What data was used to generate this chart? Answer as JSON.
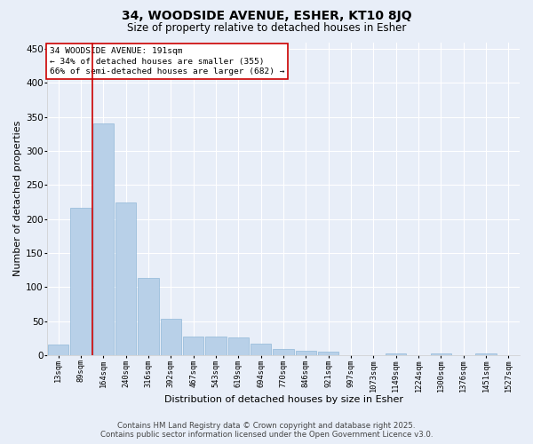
{
  "title1": "34, WOODSIDE AVENUE, ESHER, KT10 8JQ",
  "title2": "Size of property relative to detached houses in Esher",
  "xlabel": "Distribution of detached houses by size in Esher",
  "ylabel": "Number of detached properties",
  "categories": [
    "13sqm",
    "89sqm",
    "164sqm",
    "240sqm",
    "316sqm",
    "392sqm",
    "467sqm",
    "543sqm",
    "619sqm",
    "694sqm",
    "770sqm",
    "846sqm",
    "921sqm",
    "997sqm",
    "1073sqm",
    "1149sqm",
    "1224sqm",
    "1300sqm",
    "1376sqm",
    "1451sqm",
    "1527sqm"
  ],
  "values": [
    15,
    216,
    340,
    224,
    113,
    53,
    27,
    27,
    26,
    17,
    9,
    6,
    5,
    0,
    0,
    3,
    0,
    2,
    0,
    2,
    0
  ],
  "bar_color": "#b8d0e8",
  "bar_edge_color": "#90b8d8",
  "vline_x": 1.5,
  "vline_color": "#cc0000",
  "annotation_title": "34 WOODSIDE AVENUE: 191sqm",
  "annotation_line1": "← 34% of detached houses are smaller (355)",
  "annotation_line2": "66% of semi-detached houses are larger (682) →",
  "annotation_box_color": "#ffffff",
  "annotation_box_edge": "#cc0000",
  "ylim": [
    0,
    460
  ],
  "yticks": [
    0,
    50,
    100,
    150,
    200,
    250,
    300,
    350,
    400,
    450
  ],
  "bg_color": "#e8eef8",
  "grid_color": "#ffffff",
  "footer1": "Contains HM Land Registry data © Crown copyright and database right 2025.",
  "footer2": "Contains public sector information licensed under the Open Government Licence v3.0."
}
